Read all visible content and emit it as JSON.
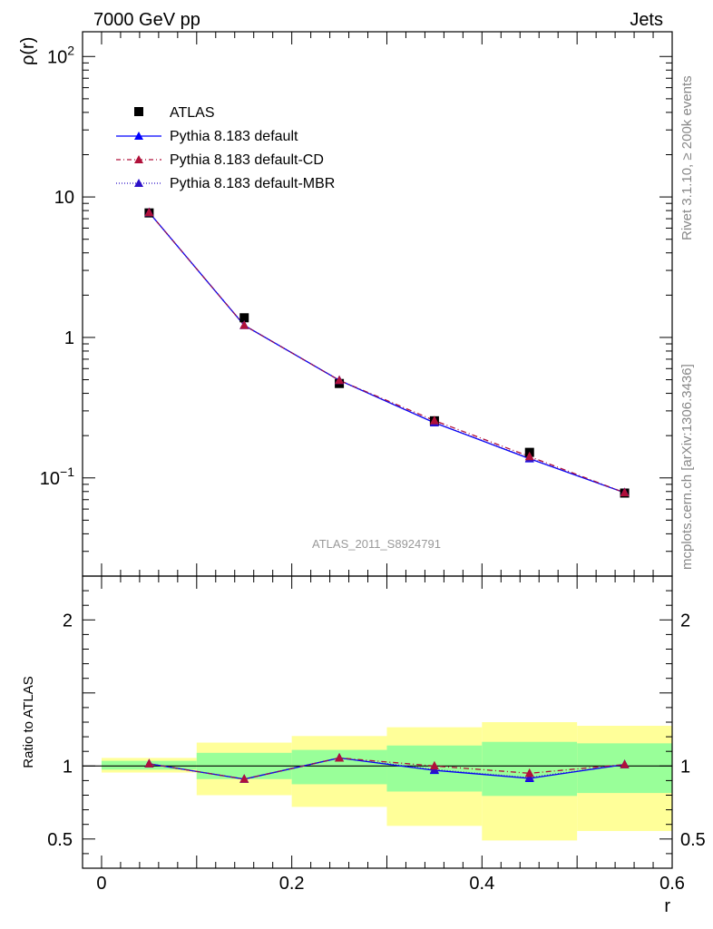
{
  "header": {
    "energy_label": "7000 GeV pp",
    "process_label": "Jets"
  },
  "side_text": {
    "rivet": "Rivet 3.1.10, ≥ 200k events",
    "source": "mcplots.cern.ch [arXiv:1306.3436]"
  },
  "analysis_label": "ATLAS_2011_S8924791",
  "colors": {
    "atlas": "#000000",
    "default": "#0000ff",
    "cd": "#b0103a",
    "mbr": "#2c10c8",
    "band_inner": "#99ff99",
    "band_outer": "#ffff99"
  },
  "chart_data": [
    {
      "type": "line",
      "panel": "main",
      "xlabel": "r",
      "ylabel": "ρ(r)",
      "yscale": "log",
      "xlim": [
        -0.02,
        0.6
      ],
      "ylim": [
        0.02,
        150
      ],
      "y_ticks": [
        {
          "value": 0.1,
          "base": "10",
          "exp": "−1"
        },
        {
          "value": 1,
          "label": "1"
        },
        {
          "value": 10,
          "label": "10"
        },
        {
          "value": 100,
          "base": "10",
          "exp": "2"
        }
      ],
      "legend": [
        {
          "label": "ATLAS",
          "key": "atlas"
        },
        {
          "label": "Pythia 8.183 default",
          "key": "default"
        },
        {
          "label": "Pythia 8.183 default-CD",
          "key": "cd"
        },
        {
          "label": "Pythia 8.183 default-MBR",
          "key": "mbr"
        }
      ],
      "x": [
        0.05,
        0.15,
        0.25,
        0.35,
        0.45,
        0.55
      ],
      "series": [
        {
          "name": "ATLAS",
          "key": "atlas",
          "values": [
            7.7,
            1.38,
            0.47,
            0.255,
            0.152,
            0.078
          ]
        },
        {
          "name": "Pythia 8.183 default",
          "key": "default",
          "values": [
            7.75,
            1.22,
            0.495,
            0.247,
            0.137,
            0.0785
          ]
        },
        {
          "name": "Pythia 8.183 default-CD",
          "key": "cd",
          "values": [
            7.75,
            1.22,
            0.495,
            0.256,
            0.142,
            0.0785
          ]
        },
        {
          "name": "Pythia 8.183 default-MBR",
          "key": "mbr",
          "values": [
            7.75,
            1.22,
            0.495,
            0.248,
            0.138,
            0.0785
          ]
        }
      ]
    },
    {
      "type": "line",
      "panel": "ratio",
      "xlabel": "r",
      "ylabel": "Ratio to ATLAS",
      "xlim": [
        -0.02,
        0.6
      ],
      "ylim": [
        0.3,
        2.3
      ],
      "x_ticks": [
        {
          "value": 0,
          "label": "0"
        },
        {
          "value": 0.2,
          "label": "0.2"
        },
        {
          "value": 0.4,
          "label": "0.4"
        },
        {
          "value": 0.6,
          "label": "0.6"
        }
      ],
      "y_ticks": [
        {
          "value": 0.5,
          "label": "0.5"
        },
        {
          "value": 1,
          "label": "1"
        },
        {
          "value": 2,
          "label": "2"
        }
      ],
      "bands": {
        "edges": [
          0.0,
          0.1,
          0.2,
          0.3,
          0.4,
          0.5,
          0.6
        ],
        "inner_low": [
          0.975,
          0.91,
          0.875,
          0.825,
          0.795,
          0.815
        ],
        "inner_high": [
          1.035,
          1.09,
          1.11,
          1.14,
          1.165,
          1.155
        ],
        "outer_low": [
          0.955,
          0.8,
          0.72,
          0.59,
          0.49,
          0.555
        ],
        "outer_high": [
          1.055,
          1.16,
          1.205,
          1.265,
          1.3,
          1.275
        ]
      },
      "x": [
        0.05,
        0.15,
        0.25,
        0.35,
        0.45,
        0.55
      ],
      "series": [
        {
          "name": "Pythia 8.183 default",
          "key": "default",
          "values": [
            1.015,
            0.91,
            1.055,
            0.97,
            0.915,
            1.01
          ]
        },
        {
          "name": "Pythia 8.183 default-CD",
          "key": "cd",
          "values": [
            1.015,
            0.91,
            1.055,
            1.0,
            0.95,
            1.01
          ]
        },
        {
          "name": "Pythia 8.183 default-MBR",
          "key": "mbr",
          "values": [
            1.015,
            0.91,
            1.055,
            0.975,
            0.92,
            1.01
          ]
        }
      ]
    }
  ]
}
